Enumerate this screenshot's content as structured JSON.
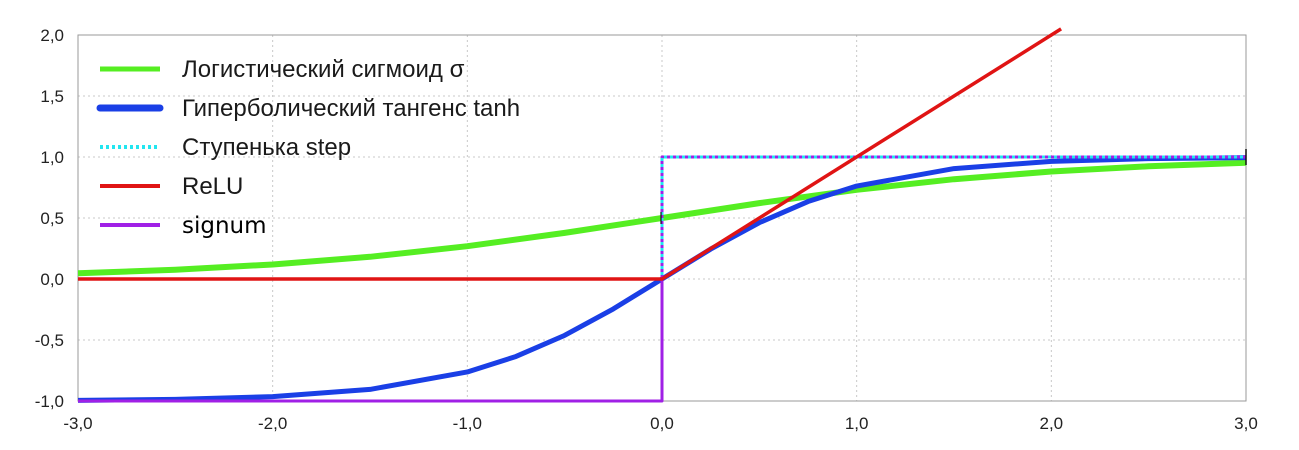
{
  "chart_data": {
    "type": "line",
    "title": "",
    "xlabel": "",
    "ylabel": "",
    "xlim": [
      -3.0,
      3.0
    ],
    "ylim": [
      -1.0,
      2.0
    ],
    "x_ticks": [
      "-3,0",
      "-2,0",
      "-1,0",
      "0,0",
      "1,0",
      "2,0",
      "3,0"
    ],
    "y_ticks": [
      "2,0",
      "1,5",
      "1,0",
      "0,5",
      "0,0",
      "-0,5",
      "-1,0"
    ],
    "grid": true,
    "legend_position": "top-left",
    "series": [
      {
        "name": "Логистический сигмоид σ",
        "color": "#55ee22",
        "style": "solid",
        "x": [
          -3.0,
          -2.5,
          -2.0,
          -1.5,
          -1.0,
          -0.5,
          0.0,
          0.5,
          1.0,
          1.5,
          2.0,
          2.5,
          3.0
        ],
        "y": [
          0.047,
          0.076,
          0.119,
          0.182,
          0.269,
          0.378,
          0.5,
          0.622,
          0.731,
          0.818,
          0.881,
          0.924,
          0.953
        ]
      },
      {
        "name": "Гиперболический тангенс tanh",
        "color": "#1a3fe6",
        "style": "solid",
        "x": [
          -3.0,
          -2.5,
          -2.0,
          -1.5,
          -1.0,
          -0.75,
          -0.5,
          -0.25,
          0.0,
          0.25,
          0.5,
          0.75,
          1.0,
          1.5,
          2.0,
          2.5,
          3.0
        ],
        "y": [
          -0.995,
          -0.987,
          -0.964,
          -0.905,
          -0.762,
          -0.635,
          -0.462,
          -0.245,
          0.0,
          0.245,
          0.462,
          0.635,
          0.762,
          0.905,
          0.964,
          0.987,
          0.995
        ]
      },
      {
        "name": "Ступенька step",
        "color": "#22e6f0",
        "style": "dotted",
        "x": [
          -3.0,
          0.0,
          0.0,
          3.0
        ],
        "y": [
          0.0,
          0.0,
          1.0,
          1.0
        ]
      },
      {
        "name": "ReLU",
        "color": "#e01414",
        "style": "solid",
        "x": [
          -3.0,
          0.0,
          2.05
        ],
        "y": [
          0.0,
          0.0,
          2.05
        ]
      },
      {
        "name": "signum",
        "color": "#a020e6",
        "style": "solid",
        "x": [
          -3.0,
          0.0,
          0.0,
          3.0
        ],
        "y": [
          -1.0,
          -1.0,
          1.0,
          1.0
        ]
      }
    ]
  }
}
